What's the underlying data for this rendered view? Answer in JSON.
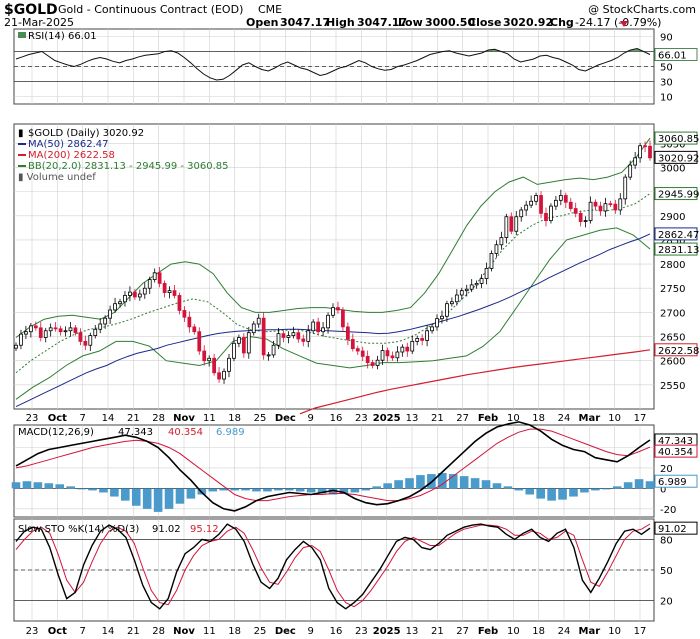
{
  "header": {
    "symbol": "$GOLD",
    "name": "Gold - Continuous Contract (EOD)",
    "exchange": "CME",
    "credit": "@ StockCharts.com",
    "date": "21-Mar-2025",
    "open_label": "Open",
    "open": "3047.17",
    "high_label": "High",
    "high": "3047.17",
    "low_label": "Low",
    "low": "3000.50",
    "close_label": "Close",
    "close": "3020.92",
    "chg_label": "Chg",
    "chg": "-24.17 (-0.79%)"
  },
  "colors": {
    "up": "#000000",
    "down": "#d2143a",
    "ma50": "#1a2a8a",
    "ma200": "#d21e2e",
    "bb": "#2e7d32",
    "rsi_fill": "#4d8a55",
    "macd_hist": "#4a9acb",
    "grid": "#d0d0d0"
  },
  "chart_data": [
    {
      "type": "line",
      "panel": "RSI",
      "legend": "RSI(14) 66.01",
      "value_label": "66.01",
      "y_ticks": [
        "90",
        "70",
        "50",
        "30",
        "10"
      ],
      "ylim": [
        0,
        100
      ],
      "levels": [
        70,
        50,
        30
      ],
      "series": [
        {
          "name": "RSI(14)",
          "values": [
            60,
            63,
            66,
            68,
            70,
            64,
            58,
            55,
            52,
            50,
            53,
            57,
            60,
            62,
            60,
            57,
            55,
            58,
            60,
            63,
            65,
            66,
            67,
            70,
            71,
            68,
            62,
            55,
            47,
            40,
            35,
            32,
            33,
            38,
            45,
            52,
            55,
            50,
            46,
            44,
            48,
            53,
            56,
            52,
            48,
            46,
            42,
            38,
            40,
            44,
            48,
            50,
            54,
            58,
            55,
            50,
            47,
            45,
            46,
            50,
            52,
            55,
            58,
            62,
            66,
            68,
            70,
            71,
            68,
            66,
            64,
            66,
            68,
            72,
            73,
            70,
            67,
            60,
            56,
            58,
            60,
            64,
            65,
            62,
            60,
            56,
            52,
            46,
            44,
            48,
            52,
            55,
            58,
            62,
            68,
            72,
            74,
            70,
            66
          ]
        }
      ]
    },
    {
      "type": "candlestick",
      "panel": "price",
      "legend": "$GOLD (Daily) 3020.92",
      "ylim": [
        2500,
        3090
      ],
      "y_ticks": [
        "3050",
        "3000",
        "2950",
        "2900",
        "2850",
        "2800",
        "2750",
        "2700",
        "2650",
        "2600",
        "2550"
      ],
      "right_labels": [
        "3060.85",
        "3020.92",
        "2945.99",
        "2862.47",
        "2831.13",
        "2622.58"
      ],
      "x_ticks": [
        "23",
        "Oct",
        "7",
        "14",
        "21",
        "28",
        "Nov",
        "11",
        "18",
        "25",
        "Dec",
        "9",
        "16",
        "23",
        "2025",
        "13",
        "21",
        "27",
        "Feb",
        "10",
        "18",
        "24",
        "Mar",
        "10",
        "17"
      ],
      "close": [
        2632,
        2655,
        2660,
        2672,
        2668,
        2648,
        2662,
        2668,
        2666,
        2660,
        2662,
        2668,
        2658,
        2640,
        2632,
        2652,
        2665,
        2676,
        2688,
        2705,
        2718,
        2722,
        2735,
        2742,
        2732,
        2738,
        2750,
        2768,
        2782,
        2760,
        2741,
        2745,
        2735,
        2704,
        2690,
        2670,
        2660,
        2620,
        2600,
        2605,
        2575,
        2562,
        2578,
        2605,
        2636,
        2648,
        2616,
        2658,
        2676,
        2688,
        2612,
        2612,
        2632,
        2656,
        2648,
        2652,
        2658,
        2645,
        2640,
        2662,
        2680,
        2660,
        2668,
        2694,
        2710,
        2705,
        2670,
        2644,
        2625,
        2620,
        2609,
        2596,
        2590,
        2601,
        2621,
        2610,
        2606,
        2618,
        2628,
        2620,
        2640,
        2646,
        2642,
        2662,
        2670,
        2687,
        2692,
        2718,
        2722,
        2736,
        2745,
        2748,
        2757,
        2760,
        2770,
        2791,
        2822,
        2840,
        2855,
        2898,
        2868,
        2898,
        2912,
        2922,
        2930,
        2942,
        2905,
        2890,
        2920,
        2932,
        2942,
        2928,
        2915,
        2905,
        2888,
        2890,
        2928,
        2920,
        2910,
        2925,
        2924,
        2912,
        2935,
        2980,
        3005,
        3020,
        3045,
        3044,
        3020
      ],
      "ma50_series": [
        2505,
        2515,
        2525,
        2535,
        2545,
        2555,
        2565,
        2575,
        2583,
        2590,
        2600,
        2608,
        2615,
        2620,
        2625,
        2632,
        2637,
        2642,
        2647,
        2652,
        2656,
        2659,
        2661,
        2662,
        2663,
        2664,
        2664,
        2665,
        2665,
        2664,
        2663,
        2662,
        2661,
        2660,
        2659,
        2658,
        2656,
        2657,
        2660,
        2664,
        2669,
        2674,
        2680,
        2686,
        2692,
        2699,
        2706,
        2714,
        2722,
        2731,
        2741,
        2751,
        2761,
        2772,
        2782,
        2792,
        2802,
        2811,
        2820,
        2830,
        2838,
        2846,
        2853,
        2862.47
      ],
      "ma200_series": [
        2490,
        2502,
        2510,
        2518,
        2526,
        2534,
        2541,
        2547,
        2553,
        2559,
        2565,
        2571,
        2576,
        2581,
        2586,
        2590,
        2594,
        2598,
        2602,
        2606,
        2610,
        2614,
        2618,
        2622.58
      ],
      "bb_upper": [
        2648,
        2670,
        2686,
        2692,
        2694,
        2690,
        2686,
        2700,
        2730,
        2760,
        2780,
        2800,
        2805,
        2800,
        2780,
        2740,
        2710,
        2700,
        2700,
        2704,
        2708,
        2710,
        2710,
        2706,
        2702,
        2700,
        2700,
        2704,
        2710,
        2740,
        2780,
        2830,
        2880,
        2920,
        2950,
        2970,
        2980,
        2965,
        2970,
        2975,
        2978,
        2975,
        2980,
        2990,
        3020,
        3060.85
      ],
      "bb_mid": [
        2575,
        2600,
        2620,
        2640,
        2655,
        2665,
        2670,
        2678,
        2688,
        2700,
        2710,
        2720,
        2728,
        2722,
        2700,
        2675,
        2663,
        2660,
        2662,
        2665,
        2658,
        2650,
        2645,
        2640,
        2636,
        2636,
        2640,
        2652,
        2670,
        2690,
        2720,
        2750,
        2790,
        2830,
        2860,
        2880,
        2895,
        2900,
        2908,
        2912,
        2910,
        2915,
        2925,
        2945.99
      ],
      "bb_lower": [
        2520,
        2545,
        2565,
        2590,
        2610,
        2620,
        2640,
        2640,
        2630,
        2600,
        2595,
        2590,
        2600,
        2640,
        2650,
        2645,
        2625,
        2610,
        2595,
        2590,
        2585,
        2590,
        2596,
        2596,
        2598,
        2600,
        2605,
        2610,
        2630,
        2660,
        2710,
        2760,
        2810,
        2850,
        2860,
        2870,
        2875,
        2860,
        2831.13
      ]
    },
    {
      "type": "line",
      "panel": "MACD",
      "legend": "MACD(12,26,9)",
      "values_text": {
        "macd": "47.343",
        "signal": "40.354",
        "hist": "6.989"
      },
      "y_ticks": [
        "40",
        "20",
        "0",
        "-20"
      ],
      "ylim": [
        -28,
        62
      ],
      "series": [
        {
          "name": "MACD",
          "values": [
            22,
            28,
            34,
            38,
            40,
            42,
            44,
            46,
            48,
            50,
            52,
            50,
            46,
            40,
            30,
            18,
            8,
            -4,
            -14,
            -20,
            -22,
            -18,
            -12,
            -8,
            -6,
            -4,
            -5,
            -6,
            -4,
            -2,
            -4,
            -10,
            -14,
            -16,
            -15,
            -12,
            -8,
            -2,
            6,
            16,
            26,
            36,
            46,
            54,
            60,
            63,
            65,
            62,
            56,
            48,
            42,
            38,
            36,
            30,
            28,
            26,
            32,
            40,
            47.343
          ]
        },
        {
          "name": "Signal",
          "values": [
            20,
            22,
            25,
            28,
            31,
            34,
            37,
            40,
            42,
            44,
            46,
            47,
            46,
            44,
            40,
            34,
            26,
            18,
            10,
            2,
            -6,
            -10,
            -12,
            -12,
            -10,
            -8,
            -7,
            -6,
            -6,
            -5,
            -5,
            -6,
            -8,
            -10,
            -12,
            -12,
            -10,
            -7,
            -2,
            4,
            12,
            20,
            28,
            36,
            44,
            50,
            55,
            58,
            58,
            56,
            52,
            48,
            44,
            40,
            36,
            33,
            32,
            36,
            40.354
          ]
        },
        {
          "name": "Histogram",
          "values": [
            6,
            7,
            6,
            5,
            4,
            2,
            0,
            -2,
            -4,
            -8,
            -12,
            -17,
            -20,
            -23,
            -20,
            -15,
            -10,
            -6,
            -3,
            -2,
            -2,
            -2,
            -3,
            -3,
            -2,
            -2,
            -3,
            -4,
            -5,
            -6,
            -5,
            -4,
            -2,
            2,
            5,
            8,
            10,
            13,
            14,
            15,
            14,
            12,
            10,
            8,
            5,
            2,
            -2,
            -6,
            -10,
            -12,
            -11,
            -8,
            -4,
            -2,
            0,
            2,
            6,
            9,
            6.989
          ]
        }
      ]
    },
    {
      "type": "line",
      "panel": "Slow STO",
      "legend": "Slow STO %K(14) %D(3)",
      "values_text": {
        "k": "91.02",
        "d": "95.12"
      },
      "y_ticks": [
        "80",
        "50",
        "20"
      ],
      "ylim": [
        0,
        100
      ],
      "levels": [
        80,
        50,
        20
      ],
      "series": [
        {
          "name": "%K",
          "values": [
            78,
            88,
            92,
            90,
            72,
            45,
            22,
            28,
            55,
            74,
            88,
            94,
            90,
            82,
            60,
            35,
            18,
            12,
            22,
            48,
            66,
            72,
            80,
            78,
            85,
            95,
            90,
            78,
            56,
            38,
            32,
            42,
            60,
            70,
            78,
            72,
            60,
            32,
            18,
            12,
            18,
            26,
            38,
            50,
            64,
            78,
            82,
            80,
            72,
            70,
            76,
            84,
            88,
            92,
            94,
            95,
            93,
            92,
            85,
            80,
            86,
            90,
            82,
            78,
            86,
            90,
            72,
            40,
            28,
            42,
            58,
            76,
            88,
            90,
            85,
            91.02
          ]
        },
        {
          "name": "%D",
          "values": [
            70,
            80,
            88,
            92,
            86,
            65,
            40,
            28,
            38,
            58,
            76,
            88,
            92,
            88,
            76,
            52,
            30,
            18,
            16,
            30,
            50,
            64,
            74,
            78,
            80,
            88,
            92,
            86,
            70,
            52,
            38,
            36,
            48,
            62,
            72,
            74,
            68,
            50,
            30,
            18,
            14,
            20,
            30,
            42,
            54,
            68,
            78,
            82,
            78,
            74,
            74,
            80,
            86,
            90,
            92,
            94,
            94,
            93,
            90,
            84,
            84,
            88,
            86,
            80,
            82,
            88,
            84,
            60,
            38,
            34,
            48,
            64,
            80,
            88,
            90,
            95.12
          ]
        }
      ]
    }
  ]
}
